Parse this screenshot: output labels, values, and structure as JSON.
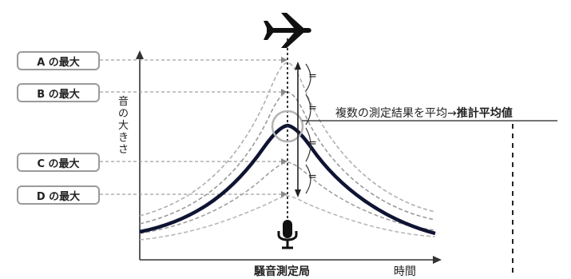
{
  "labels": {
    "a_max": "A の最大",
    "b_max": "B の最大",
    "c_max": "C の最大",
    "d_max": "D の最大"
  },
  "y_axis_chars": [
    "音",
    "の",
    "大",
    "き",
    "さ"
  ],
  "x_axis_label": "時間",
  "station_label": "騒音測定局",
  "result_text": {
    "prefix": "複数の測定結果を平均→",
    "emphasis": "推計平均値"
  },
  "equal_marks": [
    "=",
    "=",
    "=",
    "="
  ],
  "icons": [
    "airplane-icon",
    "microphone-icon"
  ],
  "colors": {
    "main_curve": "#0f1433",
    "dashed_curves": "#a8a8a8",
    "box_border": "#9a9a9a",
    "circle": "#b3b3b3"
  }
}
